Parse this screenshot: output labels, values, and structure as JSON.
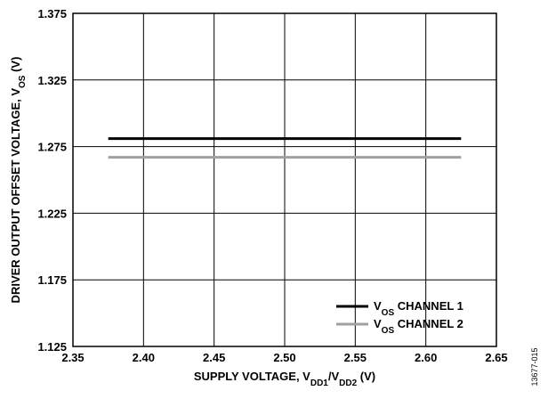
{
  "chart_data": {
    "type": "line",
    "x": [
      2.375,
      2.625
    ],
    "series": [
      {
        "name": "CHANNEL 1",
        "legend_prefix": "V",
        "legend_sub": "OS",
        "values": [
          1.281,
          1.281
        ],
        "color": "#000000"
      },
      {
        "name": "CHANNEL 2",
        "legend_prefix": "V",
        "legend_sub": "OS",
        "values": [
          1.267,
          1.267
        ],
        "color": "#a0a0a0"
      }
    ],
    "xlim": [
      2.35,
      2.65
    ],
    "ylim": [
      1.125,
      1.375
    ],
    "xticks": [
      "2.35",
      "2.40",
      "2.45",
      "2.50",
      "2.55",
      "2.60",
      "2.65"
    ],
    "yticks": [
      "1.125",
      "1.175",
      "1.225",
      "1.275",
      "1.325",
      "1.375"
    ],
    "xlabel": {
      "main": "SUPPLY VOLTAGE, V",
      "sub1": "DD1",
      "slash": "/V",
      "sub2": "DD2",
      "unit": " (V)"
    },
    "ylabel": {
      "main": "DRIVER OUTPUT OFFSET VOLTAGE, V",
      "sub": "OS",
      "unit": " (V)"
    },
    "grid": true,
    "legend_position": "bottom-right"
  },
  "figure_id": "13677-015"
}
